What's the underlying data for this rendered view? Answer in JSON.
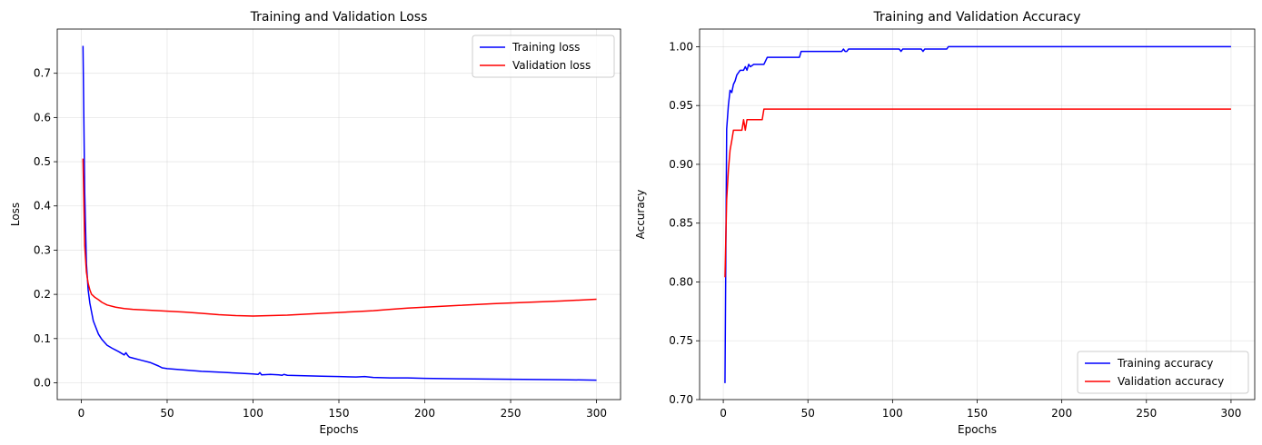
{
  "chart_data": [
    {
      "type": "line",
      "title": "Training and Validation Loss",
      "xlabel": "Epochs",
      "ylabel": "Loss",
      "xlim": [
        -14,
        314
      ],
      "ylim": [
        -0.038,
        0.8
      ],
      "xticks": [
        "0",
        "50",
        "100",
        "150",
        "200",
        "250",
        "300"
      ],
      "xtick_values": [
        0,
        50,
        100,
        150,
        200,
        250,
        300
      ],
      "yticks": [
        "0.0",
        "0.1",
        "0.2",
        "0.3",
        "0.4",
        "0.5",
        "0.6",
        "0.7"
      ],
      "ytick_values": [
        0.0,
        0.1,
        0.2,
        0.3,
        0.4,
        0.5,
        0.6,
        0.7
      ],
      "grid": true,
      "legend_position": "top-right",
      "series": [
        {
          "name": "Training loss",
          "color": "#0000ff",
          "x": [
            1,
            2,
            3,
            4,
            5,
            6,
            7,
            8,
            10,
            12,
            15,
            18,
            20,
            22,
            25,
            26,
            27,
            28,
            30,
            35,
            40,
            45,
            47,
            50,
            60,
            70,
            80,
            90,
            100,
            103,
            104,
            105,
            110,
            115,
            117,
            118,
            120,
            130,
            140,
            150,
            160,
            165,
            170,
            180,
            190,
            200,
            220,
            250,
            280,
            300
          ],
          "y": [
            0.762,
            0.43,
            0.27,
            0.21,
            0.18,
            0.16,
            0.14,
            0.13,
            0.11,
            0.098,
            0.085,
            0.078,
            0.074,
            0.07,
            0.063,
            0.068,
            0.062,
            0.058,
            0.056,
            0.051,
            0.046,
            0.038,
            0.034,
            0.032,
            0.029,
            0.026,
            0.024,
            0.022,
            0.02,
            0.019,
            0.023,
            0.018,
            0.019,
            0.018,
            0.017,
            0.019,
            0.017,
            0.016,
            0.015,
            0.014,
            0.013,
            0.014,
            0.012,
            0.011,
            0.011,
            0.01,
            0.009,
            0.008,
            0.007,
            0.006
          ]
        },
        {
          "name": "Validation loss",
          "color": "#ff0000",
          "x": [
            1,
            2,
            3,
            4,
            5,
            6,
            8,
            10,
            12,
            15,
            20,
            25,
            30,
            40,
            50,
            60,
            70,
            80,
            90,
            100,
            110,
            120,
            130,
            140,
            150,
            160,
            170,
            180,
            190,
            200,
            220,
            240,
            260,
            280,
            300
          ],
          "y": [
            0.507,
            0.31,
            0.25,
            0.225,
            0.21,
            0.2,
            0.193,
            0.188,
            0.182,
            0.176,
            0.171,
            0.168,
            0.166,
            0.164,
            0.162,
            0.16,
            0.157,
            0.154,
            0.152,
            0.151,
            0.152,
            0.153,
            0.155,
            0.157,
            0.159,
            0.161,
            0.163,
            0.166,
            0.169,
            0.171,
            0.175,
            0.179,
            0.182,
            0.185,
            0.189
          ]
        }
      ]
    },
    {
      "type": "line",
      "title": "Training and Validation Accuracy",
      "xlabel": "Epochs",
      "ylabel": "Accuracy",
      "xlim": [
        -14,
        314
      ],
      "ylim": [
        0.7,
        1.015
      ],
      "xticks": [
        "0",
        "50",
        "100",
        "150",
        "200",
        "250",
        "300"
      ],
      "xtick_values": [
        0,
        50,
        100,
        150,
        200,
        250,
        300
      ],
      "yticks": [
        "0.70",
        "0.75",
        "0.80",
        "0.85",
        "0.90",
        "0.95",
        "1.00"
      ],
      "ytick_values": [
        0.7,
        0.75,
        0.8,
        0.85,
        0.9,
        0.95,
        1.0
      ],
      "grid": true,
      "legend_position": "bottom-right",
      "series": [
        {
          "name": "Training accuracy",
          "color": "#0000ff",
          "x": [
            1,
            2,
            3,
            4,
            5,
            6,
            7,
            8,
            9,
            10,
            12,
            13,
            14,
            15,
            16,
            18,
            20,
            22,
            24,
            25,
            26,
            30,
            40,
            45,
            46,
            50,
            60,
            70,
            71,
            72,
            73,
            74,
            80,
            90,
            100,
            104,
            105,
            106,
            110,
            117,
            118,
            119,
            120,
            125,
            132,
            133,
            140,
            160,
            200,
            250,
            300
          ],
          "y": [
            0.714,
            0.93,
            0.95,
            0.963,
            0.961,
            0.968,
            0.971,
            0.976,
            0.978,
            0.98,
            0.98,
            0.983,
            0.98,
            0.985,
            0.983,
            0.985,
            0.985,
            0.985,
            0.985,
            0.988,
            0.991,
            0.991,
            0.991,
            0.991,
            0.996,
            0.996,
            0.996,
            0.996,
            0.998,
            0.996,
            0.996,
            0.998,
            0.998,
            0.998,
            0.998,
            0.998,
            0.996,
            0.998,
            0.998,
            0.998,
            0.996,
            0.998,
            0.998,
            0.998,
            0.998,
            1.0,
            1.0,
            1.0,
            1.0,
            1.0,
            1.0
          ]
        },
        {
          "name": "Validation accuracy",
          "color": "#ff0000",
          "x": [
            1,
            2,
            3,
            4,
            5,
            6,
            7,
            8,
            10,
            11,
            12,
            13,
            14,
            15,
            18,
            20,
            22,
            23,
            24,
            25,
            30,
            50,
            100,
            150,
            200,
            250,
            300
          ],
          "y": [
            0.804,
            0.87,
            0.895,
            0.912,
            0.92,
            0.929,
            0.929,
            0.929,
            0.929,
            0.929,
            0.938,
            0.929,
            0.938,
            0.938,
            0.938,
            0.938,
            0.938,
            0.938,
            0.947,
            0.947,
            0.947,
            0.947,
            0.947,
            0.947,
            0.947,
            0.947,
            0.947
          ]
        }
      ]
    }
  ]
}
